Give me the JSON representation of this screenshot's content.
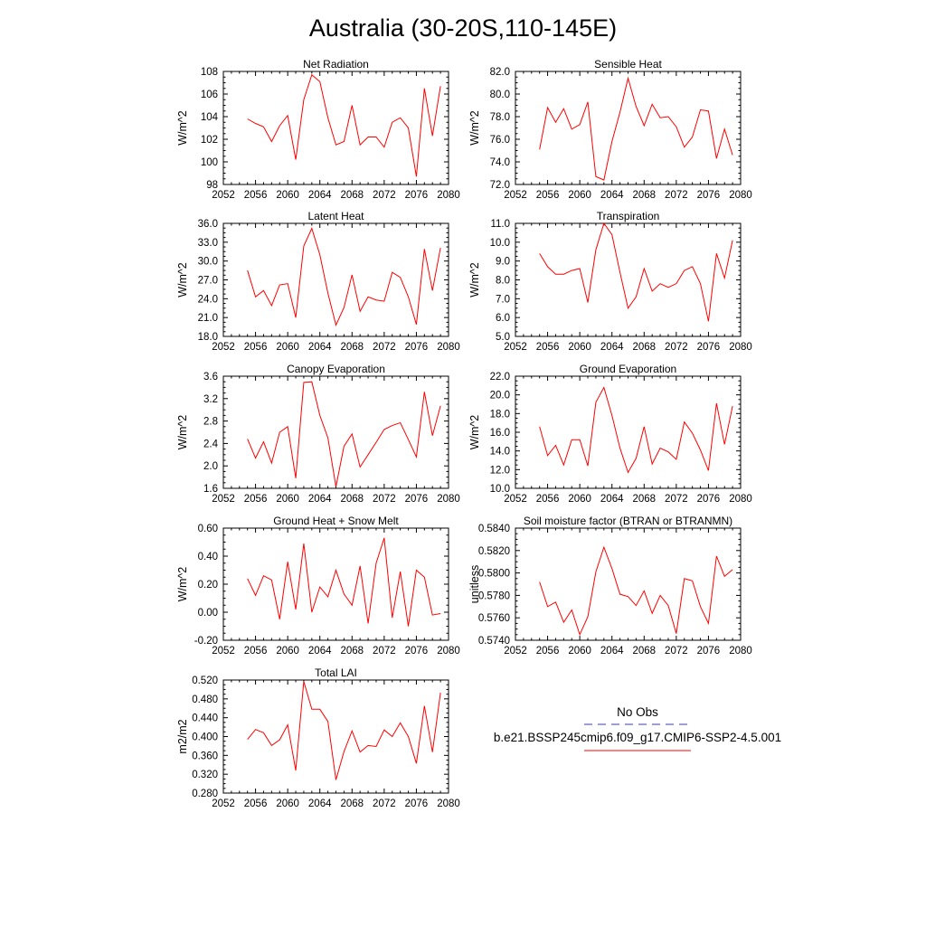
{
  "figure": {
    "title": "Australia (30-20S,110-145E)"
  },
  "legend": {
    "obs_label": "No Obs",
    "obs_color": "#3b3bb0",
    "model_label": "b.e21.BSSP245cmip6.f09_g17.CMIP6-SSP2-4.5.001",
    "model_color": "#ff0000"
  },
  "chart_data": [
    {
      "type": "line",
      "title": "Net Radiation",
      "ylabel": "W/m^2",
      "xlim": [
        2052,
        2080
      ],
      "ylim": [
        98,
        108
      ],
      "xticks": [
        2052,
        2056,
        2060,
        2064,
        2068,
        2072,
        2076,
        2080
      ],
      "yticks": [
        "98",
        "100",
        "102",
        "104",
        "106",
        "108"
      ],
      "x": [
        2055,
        2056,
        2057,
        2058,
        2059,
        2060,
        2061,
        2062,
        2063,
        2064,
        2065,
        2066,
        2067,
        2068,
        2069,
        2070,
        2071,
        2072,
        2073,
        2074,
        2075,
        2076,
        2077,
        2078,
        2079
      ],
      "series": [
        {
          "values": [
            103.8,
            103.4,
            103.1,
            101.8,
            103.2,
            104.1,
            100.2,
            105.5,
            107.7,
            107.1,
            103.9,
            101.5,
            101.8,
            105.0,
            101.5,
            102.2,
            102.2,
            101.3,
            103.5,
            103.9,
            103.0,
            98.7,
            106.5,
            102.3,
            106.7
          ]
        }
      ]
    },
    {
      "type": "line",
      "title": "Sensible Heat",
      "ylabel": "W/m^2",
      "xlim": [
        2052,
        2080
      ],
      "ylim": [
        72,
        82
      ],
      "xticks": [
        2052,
        2056,
        2060,
        2064,
        2068,
        2072,
        2076,
        2080
      ],
      "yticks": [
        "72.0",
        "74.0",
        "76.0",
        "78.0",
        "80.0",
        "82.0"
      ],
      "x": [
        2055,
        2056,
        2057,
        2058,
        2059,
        2060,
        2061,
        2062,
        2063,
        2064,
        2065,
        2066,
        2067,
        2068,
        2069,
        2070,
        2071,
        2072,
        2073,
        2074,
        2075,
        2076,
        2077,
        2078,
        2079
      ],
      "series": [
        {
          "values": [
            75.1,
            78.8,
            77.5,
            78.7,
            76.9,
            77.3,
            79.3,
            72.7,
            72.4,
            75.8,
            78.4,
            81.4,
            78.9,
            77.2,
            79.1,
            77.9,
            78.0,
            77.1,
            75.3,
            76.2,
            78.6,
            78.5,
            74.3,
            76.9,
            74.6
          ]
        }
      ]
    },
    {
      "type": "line",
      "title": "Latent Heat",
      "ylabel": "W/m^2",
      "xlim": [
        2052,
        2080
      ],
      "ylim": [
        18,
        36
      ],
      "xticks": [
        2052,
        2056,
        2060,
        2064,
        2068,
        2072,
        2076,
        2080
      ],
      "yticks": [
        "18.0",
        "21.0",
        "24.0",
        "27.0",
        "30.0",
        "33.0",
        "36.0"
      ],
      "x": [
        2055,
        2056,
        2057,
        2058,
        2059,
        2060,
        2061,
        2062,
        2063,
        2064,
        2065,
        2066,
        2067,
        2068,
        2069,
        2070,
        2071,
        2072,
        2073,
        2074,
        2075,
        2076,
        2077,
        2078,
        2079
      ],
      "series": [
        {
          "values": [
            28.5,
            24.3,
            25.3,
            22.9,
            26.2,
            26.4,
            21.0,
            32.4,
            35.2,
            31.0,
            24.9,
            19.8,
            22.6,
            27.8,
            22.0,
            24.3,
            23.8,
            23.6,
            28.2,
            27.4,
            24.3,
            19.9,
            31.9,
            25.3,
            32.1
          ]
        }
      ]
    },
    {
      "type": "line",
      "title": "Transpiration",
      "ylabel": "W/m^2",
      "xlim": [
        2052,
        2080
      ],
      "ylim": [
        5,
        11
      ],
      "xticks": [
        2052,
        2056,
        2060,
        2064,
        2068,
        2072,
        2076,
        2080
      ],
      "yticks": [
        "5.0",
        "6.0",
        "7.0",
        "8.0",
        "9.0",
        "10.0",
        "11.0"
      ],
      "x": [
        2055,
        2056,
        2057,
        2058,
        2059,
        2060,
        2061,
        2062,
        2063,
        2064,
        2065,
        2066,
        2067,
        2068,
        2069,
        2070,
        2071,
        2072,
        2073,
        2074,
        2075,
        2076,
        2077,
        2078,
        2079
      ],
      "series": [
        {
          "values": [
            9.4,
            8.7,
            8.3,
            8.3,
            8.5,
            8.6,
            6.8,
            9.6,
            11.0,
            10.4,
            8.4,
            6.5,
            7.1,
            8.6,
            7.4,
            7.8,
            7.6,
            7.8,
            8.5,
            8.7,
            7.8,
            5.8,
            9.4,
            8.1,
            10.1
          ]
        }
      ]
    },
    {
      "type": "line",
      "title": "Canopy Evaporation",
      "ylabel": "W/m^2",
      "xlim": [
        2052,
        2080
      ],
      "ylim": [
        1.6,
        3.6
      ],
      "xticks": [
        2052,
        2056,
        2060,
        2064,
        2068,
        2072,
        2076,
        2080
      ],
      "yticks": [
        "1.6",
        "2.0",
        "2.4",
        "2.8",
        "3.2",
        "3.6"
      ],
      "x": [
        2055,
        2056,
        2057,
        2058,
        2059,
        2060,
        2061,
        2062,
        2063,
        2064,
        2065,
        2066,
        2067,
        2068,
        2069,
        2070,
        2071,
        2072,
        2073,
        2074,
        2075,
        2076,
        2077,
        2078,
        2079
      ],
      "series": [
        {
          "values": [
            2.48,
            2.14,
            2.43,
            2.05,
            2.6,
            2.7,
            1.78,
            3.49,
            3.5,
            2.9,
            2.5,
            1.63,
            2.35,
            2.57,
            1.98,
            2.2,
            2.42,
            2.65,
            2.72,
            2.77,
            2.47,
            2.16,
            3.32,
            2.54,
            3.07
          ]
        }
      ]
    },
    {
      "type": "line",
      "title": "Ground Evaporation",
      "ylabel": "W/m^2",
      "xlim": [
        2052,
        2080
      ],
      "ylim": [
        10,
        22
      ],
      "xticks": [
        2052,
        2056,
        2060,
        2064,
        2068,
        2072,
        2076,
        2080
      ],
      "yticks": [
        "10.0",
        "12.0",
        "14.0",
        "16.0",
        "18.0",
        "20.0",
        "22.0"
      ],
      "x": [
        2055,
        2056,
        2057,
        2058,
        2059,
        2060,
        2061,
        2062,
        2063,
        2064,
        2065,
        2066,
        2067,
        2068,
        2069,
        2070,
        2071,
        2072,
        2073,
        2074,
        2075,
        2076,
        2077,
        2078,
        2079
      ],
      "series": [
        {
          "values": [
            16.6,
            13.5,
            14.6,
            12.5,
            15.2,
            15.2,
            12.4,
            19.2,
            20.8,
            17.8,
            14.3,
            11.7,
            13.2,
            16.6,
            12.6,
            14.3,
            13.9,
            13.1,
            17.1,
            15.9,
            14.1,
            11.9,
            19.1,
            14.7,
            18.8
          ]
        }
      ]
    },
    {
      "type": "line",
      "title": "Ground Heat + Snow Melt",
      "ylabel": "W/m^2",
      "xlim": [
        2052,
        2080
      ],
      "ylim": [
        -0.2,
        0.6
      ],
      "xticks": [
        2052,
        2056,
        2060,
        2064,
        2068,
        2072,
        2076,
        2080
      ],
      "yticks": [
        "-0.20",
        "0.00",
        "0.20",
        "0.40",
        "0.60"
      ],
      "x": [
        2055,
        2056,
        2057,
        2058,
        2059,
        2060,
        2061,
        2062,
        2063,
        2064,
        2065,
        2066,
        2067,
        2068,
        2069,
        2070,
        2071,
        2072,
        2073,
        2074,
        2075,
        2076,
        2077,
        2078,
        2079
      ],
      "series": [
        {
          "values": [
            0.24,
            0.12,
            0.26,
            0.23,
            -0.05,
            0.36,
            0.02,
            0.49,
            0.0,
            0.18,
            0.11,
            0.3,
            0.13,
            0.05,
            0.33,
            -0.08,
            0.35,
            0.53,
            -0.04,
            0.29,
            -0.1,
            0.3,
            0.25,
            -0.02,
            -0.01
          ]
        }
      ]
    },
    {
      "type": "line",
      "title": "Soil moisture factor (BTRAN or BTRANMN)",
      "ylabel": "unitless",
      "xlim": [
        2052,
        2080
      ],
      "ylim": [
        0.574,
        0.584
      ],
      "xticks": [
        2052,
        2056,
        2060,
        2064,
        2068,
        2072,
        2076,
        2080
      ],
      "yticks": [
        "0.5740",
        "0.5760",
        "0.5780",
        "0.5800",
        "0.5820",
        "0.5840"
      ],
      "x": [
        2055,
        2056,
        2057,
        2058,
        2059,
        2060,
        2061,
        2062,
        2063,
        2064,
        2065,
        2066,
        2067,
        2068,
        2069,
        2070,
        2071,
        2072,
        2073,
        2074,
        2075,
        2076,
        2077,
        2078,
        2079
      ],
      "series": [
        {
          "values": [
            0.5792,
            0.577,
            0.5774,
            0.5756,
            0.5767,
            0.5745,
            0.5761,
            0.5801,
            0.5823,
            0.5804,
            0.5781,
            0.5779,
            0.5771,
            0.5784,
            0.5764,
            0.578,
            0.5771,
            0.5746,
            0.5795,
            0.5793,
            0.577,
            0.5755,
            0.5815,
            0.5797,
            0.5803
          ]
        }
      ]
    },
    {
      "type": "line",
      "title": "Total LAI",
      "ylabel": "m2/m2",
      "xlim": [
        2052,
        2080
      ],
      "ylim": [
        0.28,
        0.52
      ],
      "xticks": [
        2052,
        2056,
        2060,
        2064,
        2068,
        2072,
        2076,
        2080
      ],
      "yticks": [
        "0.280",
        "0.320",
        "0.360",
        "0.400",
        "0.440",
        "0.480",
        "0.520"
      ],
      "x": [
        2055,
        2056,
        2057,
        2058,
        2059,
        2060,
        2061,
        2062,
        2063,
        2064,
        2065,
        2066,
        2067,
        2068,
        2069,
        2070,
        2071,
        2072,
        2073,
        2074,
        2075,
        2076,
        2077,
        2078,
        2079
      ],
      "series": [
        {
          "values": [
            0.394,
            0.415,
            0.408,
            0.381,
            0.393,
            0.425,
            0.328,
            0.517,
            0.458,
            0.458,
            0.432,
            0.308,
            0.368,
            0.412,
            0.367,
            0.381,
            0.379,
            0.414,
            0.4,
            0.429,
            0.4,
            0.343,
            0.465,
            0.367,
            0.493
          ]
        }
      ]
    }
  ]
}
